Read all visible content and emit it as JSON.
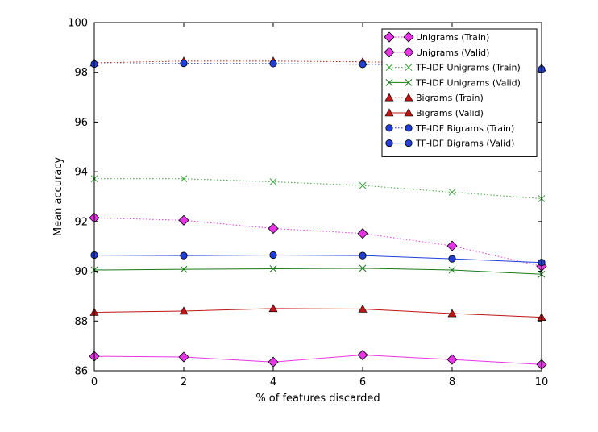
{
  "chart_data": {
    "type": "line",
    "title": "",
    "xlabel": "% of features discarded",
    "ylabel": "Mean accuracy",
    "xlim": [
      0,
      10
    ],
    "ylim": [
      86,
      100
    ],
    "xticks": [
      0,
      2,
      4,
      6,
      8,
      10
    ],
    "yticks": [
      86,
      88,
      90,
      92,
      94,
      96,
      98,
      100
    ],
    "grid": false,
    "legend_position": "top-right",
    "x": [
      0,
      2,
      4,
      6,
      8,
      10
    ],
    "series": [
      {
        "name": "Unigrams (Train)",
        "color": "#e635e6",
        "line": "dotted",
        "marker": "diamond",
        "values": [
          92.15,
          92.05,
          91.72,
          91.52,
          91.02,
          90.2
        ]
      },
      {
        "name": "Unigrams (Valid)",
        "color": "#e635e6",
        "line": "solid",
        "marker": "diamond",
        "values": [
          86.58,
          86.55,
          86.35,
          86.63,
          86.45,
          86.25
        ]
      },
      {
        "name": "TF-IDF Unigrams (Train)",
        "color": "#3aa33a",
        "line": "dotted",
        "marker": "x",
        "values": [
          93.72,
          93.72,
          93.6,
          93.45,
          93.18,
          92.92
        ]
      },
      {
        "name": "TF-IDF Unigrams (Valid)",
        "color": "#1a7a1a",
        "line": "solid",
        "marker": "x",
        "values": [
          90.05,
          90.08,
          90.1,
          90.12,
          90.05,
          89.88
        ]
      },
      {
        "name": "Bigrams (Train)",
        "color": "#c01515",
        "line": "dotted",
        "marker": "triangle",
        "values": [
          98.38,
          98.45,
          98.45,
          98.42,
          98.36,
          98.18
        ]
      },
      {
        "name": "Bigrams (Valid)",
        "color": "#c01515",
        "line": "solid",
        "marker": "triangle",
        "values": [
          88.35,
          88.4,
          88.5,
          88.48,
          88.3,
          88.15
        ]
      },
      {
        "name": "TF-IDF Bigrams (Train)",
        "color": "#1f3fd9",
        "line": "dotted",
        "marker": "circle",
        "values": [
          98.33,
          98.36,
          98.35,
          98.32,
          98.28,
          98.12
        ]
      },
      {
        "name": "TF-IDF Bigrams (Valid)",
        "color": "#1f3fd9",
        "line": "solid",
        "marker": "circle",
        "values": [
          90.65,
          90.63,
          90.65,
          90.63,
          90.5,
          90.35
        ]
      }
    ]
  }
}
